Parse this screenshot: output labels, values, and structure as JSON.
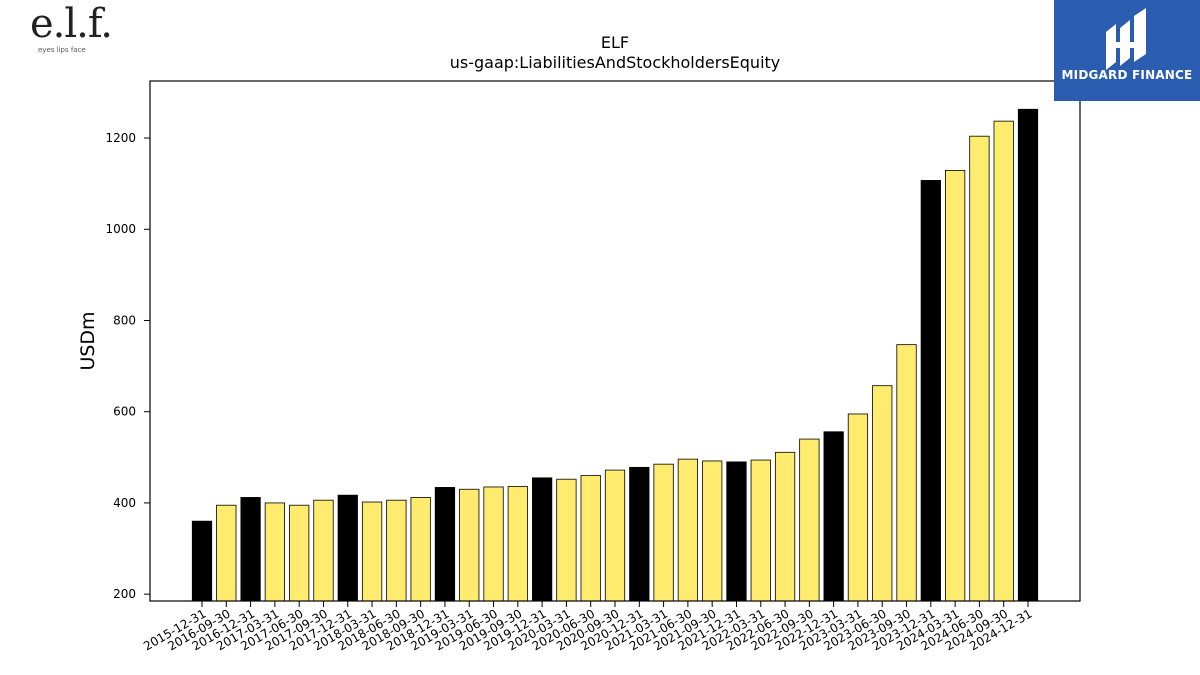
{
  "logos": {
    "left_mark": "e.l.f.",
    "left_tagline": "eyes lips face",
    "right_name": "MIDGARD FINANCE",
    "right_bg": "#2a5db0"
  },
  "chart_data": {
    "type": "bar",
    "title": "ELF",
    "subtitle": "us-gaap:LiabilitiesAndStockholdersEquity",
    "ylabel": "USDm",
    "xlabel": "",
    "ylim": [
      185,
      1325
    ],
    "yticks": [
      200,
      400,
      600,
      800,
      1000,
      1200
    ],
    "grid": false,
    "colors": {
      "annual": "#000000",
      "quarterly": "#ffec6e",
      "edge": "#000000"
    },
    "categories": [
      "2015-12-31",
      "2016-09-30",
      "2016-12-31",
      "2017-03-31",
      "2017-06-30",
      "2017-09-30",
      "2017-12-31",
      "2018-03-31",
      "2018-06-30",
      "2018-09-30",
      "2018-12-31",
      "2019-03-31",
      "2019-06-30",
      "2019-09-30",
      "2019-12-31",
      "2020-03-31",
      "2020-06-30",
      "2020-09-30",
      "2020-12-31",
      "2021-03-31",
      "2021-06-30",
      "2021-09-30",
      "2021-12-31",
      "2022-03-31",
      "2022-06-30",
      "2022-09-30",
      "2022-12-31",
      "2023-03-31",
      "2023-06-30",
      "2023-09-30",
      "2023-12-31",
      "2024-03-31",
      "2024-06-30",
      "2024-09-30",
      "2024-12-31"
    ],
    "values": [
      360,
      395,
      412,
      400,
      395,
      406,
      417,
      402,
      406,
      412,
      434,
      430,
      435,
      436,
      455,
      452,
      460,
      472,
      478,
      485,
      496,
      492,
      490,
      494,
      511,
      540,
      556,
      595,
      657,
      747,
      1107,
      1129,
      1204,
      1237,
      1263
    ],
    "annual_flags": [
      true,
      false,
      true,
      false,
      false,
      false,
      true,
      false,
      false,
      false,
      true,
      false,
      false,
      false,
      true,
      false,
      false,
      false,
      true,
      false,
      false,
      false,
      true,
      false,
      false,
      false,
      true,
      false,
      false,
      false,
      true,
      false,
      false,
      false,
      true
    ]
  }
}
